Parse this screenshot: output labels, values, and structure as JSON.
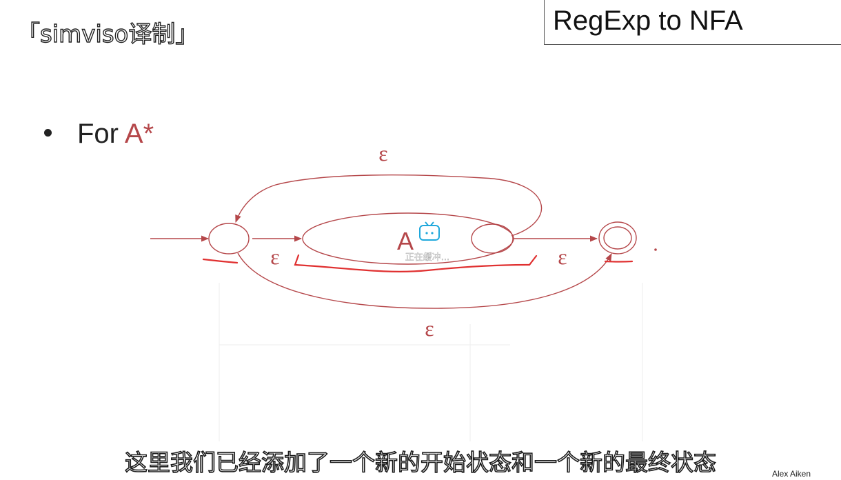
{
  "watermark": "「simviso译制」",
  "slide": {
    "title": "RegExp to NFA",
    "bullet_prefix": "For",
    "bullet_expr": "A*"
  },
  "diagram": {
    "inner_label": "A",
    "epsilon_top": "ε",
    "epsilon_left": "ε",
    "epsilon_right": "ε",
    "epsilon_bottom": "ε"
  },
  "player": {
    "loading_text": "正在缓冲..."
  },
  "subtitle": "这里我们已经添加了一个新的开始状态和一个新的最终状态",
  "author": "Alex Aiken",
  "colors": {
    "diagram": "#b5474a",
    "highlight": "#e03030",
    "loader": "#1fa8dc"
  }
}
